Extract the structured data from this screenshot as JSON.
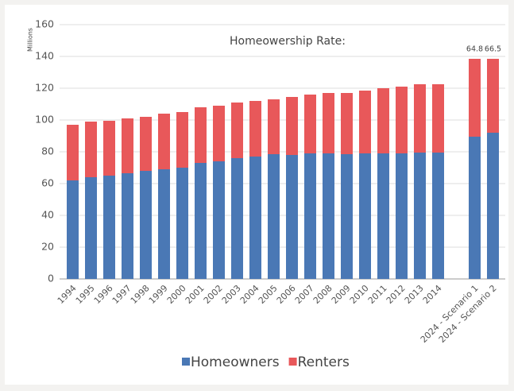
{
  "chart_data": {
    "type": "stacked-bar",
    "title": "Homeowership Rate:",
    "y_label": "Millions",
    "categories": [
      "1994",
      "1995",
      "1996",
      "1997",
      "1998",
      "1999",
      "2000",
      "2001",
      "2002",
      "2003",
      "2004",
      "2005",
      "2006",
      "2007",
      "2008",
      "2009",
      "2010",
      "2011",
      "2012",
      "2013",
      "2014",
      null,
      "2024 - Scenario 1",
      "2024 - Scenario 2"
    ],
    "series": [
      {
        "name": "Homeowners",
        "color": "#4a78b5",
        "values": [
          62,
          64,
          65,
          66.5,
          68,
          69,
          70,
          73,
          74,
          76,
          77,
          78.5,
          78,
          79,
          79,
          78.5,
          79,
          79,
          79,
          79.5,
          79.5,
          null,
          89.5,
          92
        ]
      },
      {
        "name": "Renters",
        "color": "#e8585a",
        "values": [
          35,
          35,
          34.5,
          34.5,
          34,
          35,
          35,
          35,
          35,
          35,
          35,
          34.5,
          36.5,
          37,
          38,
          38.5,
          39.5,
          41,
          42,
          43,
          43,
          null,
          49,
          46.5
        ]
      }
    ],
    "annotations": [
      {
        "category": "2024 - Scenario 1",
        "text": "64.8"
      },
      {
        "category": "2024 - Scenario 2",
        "text": "66.5"
      }
    ],
    "ylim": [
      0,
      160
    ],
    "yticks": [
      0,
      20,
      40,
      60,
      80,
      100,
      120,
      140,
      160
    ],
    "grid": true,
    "legend": "bottom"
  }
}
